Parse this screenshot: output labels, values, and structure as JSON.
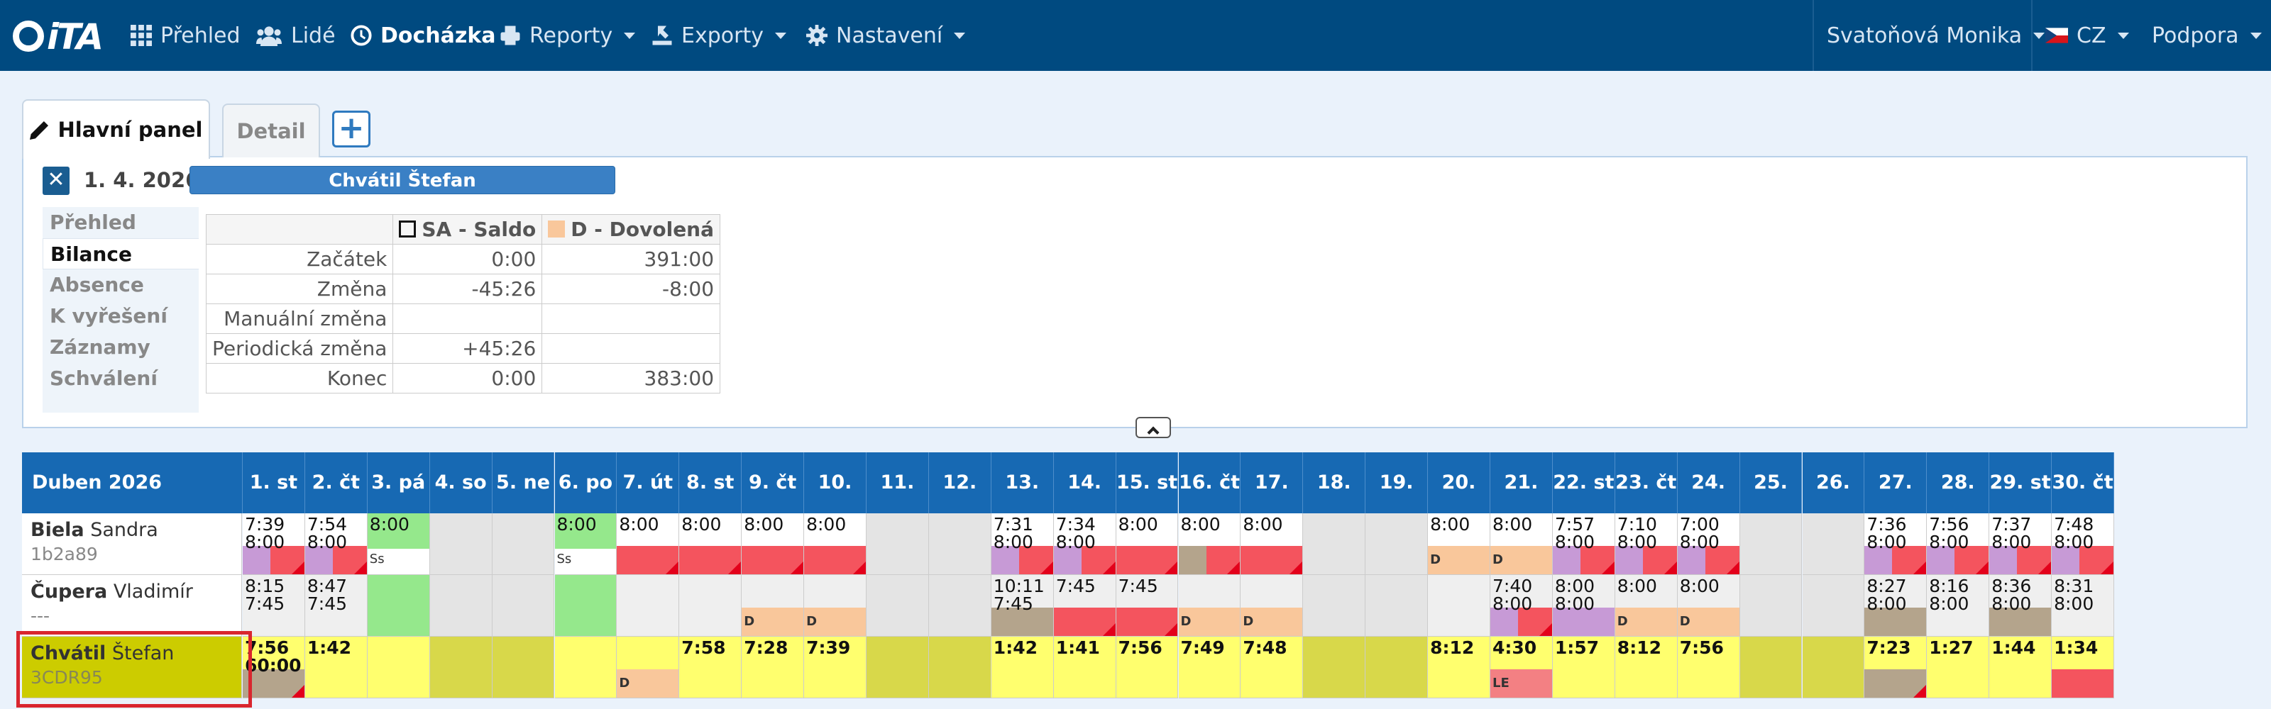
{
  "topbar": {
    "logo": "iTA",
    "nav": [
      {
        "label": "Přehled",
        "icon": "grid-icon"
      },
      {
        "label": "Lidé",
        "icon": "users-icon"
      },
      {
        "label": "Docházka",
        "icon": "clock-icon",
        "active": true
      },
      {
        "label": "Reporty",
        "icon": "print-icon",
        "dropdown": true
      },
      {
        "label": "Exporty",
        "icon": "export-icon",
        "dropdown": true
      },
      {
        "label": "Nastavení",
        "icon": "gear-icon",
        "dropdown": true
      }
    ],
    "user": "Svatoňová Monika",
    "lang": "CZ",
    "support": "Podpora"
  },
  "tabs": {
    "main": "Hlavní panel",
    "detail": "Detail",
    "add": "+"
  },
  "panel": {
    "date": "1. 4. 2026",
    "person": "Chvátil Štefan",
    "menu": [
      "Přehled",
      "Bilance",
      "Absence",
      "K vyřešení",
      "Záznamy",
      "Schválení"
    ],
    "selected_menu": "Bilance",
    "balance": {
      "columns": [
        "SA - Saldo",
        "D - Dovolená"
      ],
      "rows": [
        {
          "label": "Začátek",
          "sa": "0:00",
          "d": "391:00"
        },
        {
          "label": "Změna",
          "sa": "-45:26",
          "d": "-8:00"
        },
        {
          "label": "Manuální změna",
          "sa": "",
          "d": ""
        },
        {
          "label": "Periodická změna",
          "sa": "+45:26",
          "d": ""
        },
        {
          "label": "Konec",
          "sa": "0:00",
          "d": "383:00"
        }
      ]
    }
  },
  "grid": {
    "month": "Duben 2026",
    "days": [
      "1. st",
      "2. čt",
      "3. pá",
      "4. so",
      "5. ne",
      "6. po",
      "7. út",
      "8. st",
      "9. čt",
      "10. pá",
      "11. so",
      "12. ne",
      "13. po",
      "14. út",
      "15. st",
      "16. čt",
      "17. pá",
      "18. so",
      "19. ne",
      "20. po",
      "21. út",
      "22. st",
      "23. čt",
      "24. pá",
      "25. so",
      "26. ne",
      "27. po",
      "28. út",
      "29. st",
      "30. čt"
    ],
    "employees": [
      {
        "last": "Biela",
        "first": "Sandra",
        "code": "1b2a89",
        "cells": [
          {
            "t": "7:39\n8:00",
            "bar": [
              "purple",
              "red"
            ],
            "tri": true
          },
          {
            "t": "7:54\n8:00",
            "bar": [
              "purple",
              "red"
            ],
            "tri": true
          },
          {
            "t": "8:00",
            "top": "green",
            "lbl": "Ss"
          },
          {
            "we": true
          },
          {
            "we": true
          },
          {
            "t": "8:00",
            "top": "green",
            "lbl": "Ss"
          },
          {
            "t": "8:00",
            "bar": [
              "red"
            ],
            "tri": true
          },
          {
            "t": "8:00",
            "bar": [
              "red"
            ],
            "tri": true
          },
          {
            "t": "8:00",
            "bar": [
              "red"
            ],
            "tri": true
          },
          {
            "t": "8:00",
            "bar": [
              "red"
            ],
            "tri": true
          },
          {
            "we": true
          },
          {
            "we": true
          },
          {
            "t": "7:31\n8:00",
            "bar": [
              "purple",
              "red"
            ],
            "tri": true
          },
          {
            "t": "7:34\n8:00",
            "bar": [
              "purple",
              "red"
            ],
            "tri": true
          },
          {
            "t": "8:00",
            "bar": [
              "red"
            ],
            "tri": true
          },
          {
            "t": "8:00",
            "bar": [
              "brown",
              "red"
            ],
            "tri": true
          },
          {
            "t": "8:00",
            "bar": [
              "red"
            ],
            "tri": true
          },
          {
            "we": true
          },
          {
            "we": true
          },
          {
            "t": "8:00",
            "bar": [
              "peach"
            ],
            "lbl": "D"
          },
          {
            "t": "8:00",
            "bar": [
              "peach"
            ],
            "lbl": "D"
          },
          {
            "t": "7:57\n8:00",
            "bar": [
              "purple",
              "red"
            ],
            "tri": true
          },
          {
            "t": "7:10\n8:00",
            "bar": [
              "purple",
              "red"
            ],
            "tri": true
          },
          {
            "t": "7:00\n8:00",
            "bar": [
              "purple",
              "red"
            ],
            "tri": true
          },
          {
            "we": true
          },
          {
            "we": true
          },
          {
            "t": "7:36\n8:00",
            "bar": [
              "purple",
              "red"
            ],
            "tri": true
          },
          {
            "t": "7:56\n8:00",
            "bar": [
              "purple",
              "red"
            ],
            "tri": true
          },
          {
            "t": "7:37\n8:00",
            "bar": [
              "purple",
              "red"
            ],
            "tri": true
          },
          {
            "t": "7:48\n8:00",
            "bar": [
              "purple",
              "red"
            ],
            "tri": true
          }
        ]
      },
      {
        "last": "Čupera",
        "first": "Vladimír",
        "code": "---",
        "cells": [
          {
            "t": "8:15\n7:45"
          },
          {
            "t": "8:47\n7:45"
          },
          {
            "top": "green",
            "full": true
          },
          {
            "we": true
          },
          {
            "we": true
          },
          {
            "top": "green",
            "full": true
          },
          {},
          {},
          {
            "bar": [
              "peach"
            ],
            "lbl": "D"
          },
          {
            "bar": [
              "peach"
            ],
            "lbl": "D"
          },
          {
            "we": true
          },
          {
            "we": true
          },
          {
            "t": "10:11\n7:45",
            "bar": [
              "brown"
            ]
          },
          {
            "t": "7:45",
            "bar": [
              "red"
            ],
            "tri": true
          },
          {
            "t": "7:45",
            "bar": [
              "red"
            ],
            "tri": true
          },
          {
            "bar": [
              "peach"
            ],
            "lbl": "D"
          },
          {
            "bar": [
              "peach"
            ],
            "lbl": "D"
          },
          {
            "we": true
          },
          {
            "we": true
          },
          {},
          {
            "t": "7:40\n8:00",
            "bar": [
              "purple",
              "red"
            ],
            "tri": true
          },
          {
            "t": "8:00\n8:00",
            "bar": [
              "purple"
            ]
          },
          {
            "t": "8:00",
            "bar": [
              "peach"
            ],
            "lbl": "D"
          },
          {
            "t": "8:00",
            "bar": [
              "peach"
            ],
            "lbl": "D"
          },
          {
            "we": true
          },
          {
            "we": true
          },
          {
            "t": "8:27\n8:00",
            "bar": [
              "brown"
            ]
          },
          {
            "t": "8:16\n8:00"
          },
          {
            "t": "8:36\n8:00",
            "bar": [
              "brown"
            ]
          },
          {
            "t": "8:31\n8:00"
          }
        ]
      },
      {
        "last": "Chvátil",
        "first": "Štefan",
        "code": "3CDR95",
        "selected": true,
        "cells": [
          {
            "t": "7:56\n60:00",
            "bold": true,
            "bar": [
              "brown"
            ],
            "tri": true
          },
          {
            "t": "1:42",
            "bold": true
          },
          {},
          {
            "we": true
          },
          {
            "we": true
          },
          {},
          {
            "bar": [
              "peach"
            ],
            "lbl": "D"
          },
          {
            "t": "7:58",
            "bold": true
          },
          {
            "t": "7:28",
            "bold": true
          },
          {
            "t": "7:39",
            "bold": true
          },
          {
            "we": true
          },
          {
            "we": true
          },
          {
            "t": "1:42",
            "bold": true
          },
          {
            "t": "1:41",
            "bold": true
          },
          {
            "t": "7:56",
            "bold": true
          },
          {
            "t": "7:49",
            "bold": true
          },
          {
            "t": "7:48",
            "bold": true
          },
          {
            "we": true
          },
          {
            "we": true
          },
          {
            "t": "8:12",
            "bold": true
          },
          {
            "t": "4:30",
            "bold": true,
            "bar": [
              "pink"
            ],
            "lbl": "LE"
          },
          {
            "t": "1:57",
            "bold": true
          },
          {
            "t": "8:12",
            "bold": true
          },
          {
            "t": "7:56",
            "bold": true
          },
          {
            "we": true
          },
          {
            "we": true
          },
          {
            "t": "7:23",
            "bold": true,
            "bar": [
              "brown"
            ],
            "tri": true
          },
          {
            "t": "1:27",
            "bold": true
          },
          {
            "t": "1:44",
            "bold": true
          },
          {
            "t": "1:34",
            "bold": true,
            "bar": [
              "red"
            ]
          }
        ]
      }
    ]
  },
  "colors": {
    "topbar": "#004a80",
    "header": "#1769b3",
    "red": "#f4545e",
    "purple": "#c79ad6",
    "brown": "#b4a48c",
    "peach": "#f9c79b",
    "green": "#95e88c",
    "yellow": "#ffff6e",
    "pink": "#f38083"
  }
}
